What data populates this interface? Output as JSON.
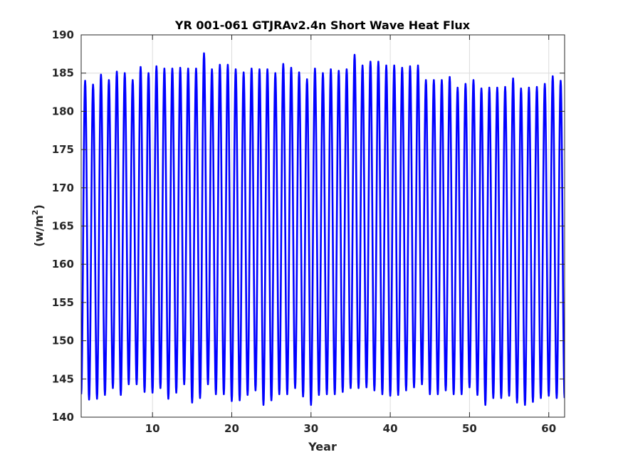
{
  "chart_data": {
    "type": "line",
    "title": "YR 001-061 GTJRAv2.4n Short Wave Heat Flux",
    "xlabel": "Year",
    "ylabel_main": "(w/m",
    "ylabel_sup": "2",
    "ylabel_close": ")",
    "xlim": [
      1,
      62
    ],
    "ylim": [
      140,
      190
    ],
    "xticks": [
      10,
      20,
      30,
      40,
      50,
      60
    ],
    "yticks": [
      140,
      145,
      150,
      155,
      160,
      165,
      170,
      175,
      180,
      185,
      190
    ],
    "grid": true,
    "series_color": "#0000ff",
    "series": [
      {
        "x_start": 1,
        "period": 1,
        "maxima": [
          184.0,
          183.5,
          184.8,
          184.1,
          185.2,
          185.0,
          184.1,
          185.8,
          185.0,
          185.9,
          185.6,
          185.6,
          185.7,
          185.6,
          185.6,
          187.6,
          185.5,
          186.1,
          186.1,
          185.5,
          185.1,
          185.6,
          185.5,
          185.5,
          185.0,
          186.2,
          185.7,
          185.1,
          184.2,
          185.6,
          185.0,
          185.5,
          185.3,
          185.5,
          187.4,
          186.0,
          186.5,
          186.5,
          186.0,
          186.0,
          185.7,
          185.9,
          186.0,
          184.1,
          184.1,
          184.1,
          184.5,
          183.1,
          183.6,
          184.1,
          183.0,
          183.1,
          183.1,
          183.2,
          184.3,
          183.0,
          183.1,
          183.2,
          183.6,
          184.6,
          184.0
        ],
        "minima": [
          143.0,
          142.3,
          142.4,
          142.9,
          143.8,
          142.9,
          144.3,
          144.3,
          143.3,
          143.2,
          143.8,
          142.4,
          143.2,
          144.3,
          141.9,
          142.5,
          144.3,
          143.0,
          143.0,
          142.1,
          142.2,
          142.9,
          143.5,
          141.6,
          142.2,
          143.0,
          143.0,
          143.8,
          142.7,
          141.6,
          142.9,
          143.0,
          143.0,
          143.3,
          143.8,
          143.8,
          143.9,
          143.5,
          143.0,
          142.8,
          142.9,
          143.5,
          143.9,
          144.3,
          143.0,
          143.0,
          143.5,
          143.0,
          143.0,
          143.9,
          142.9,
          141.6,
          142.5,
          142.5,
          142.8,
          141.9,
          141.6,
          142.0,
          142.5,
          142.8,
          142.5
        ]
      }
    ]
  }
}
